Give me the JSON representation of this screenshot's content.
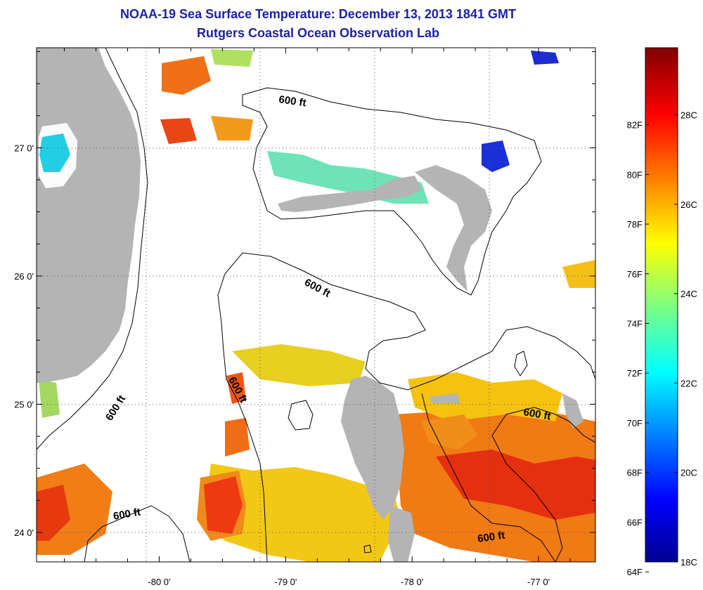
{
  "title": "NOAA-19 Sea Surface Temperature:  December 13, 2013 1841 GMT",
  "subtitle": "Rutgers Coastal Ocean Observation Lab",
  "map": {
    "lon_range": [
      -80.97,
      -76.55
    ],
    "lat_range": [
      23.77,
      27.78
    ],
    "lon_ticks": [
      {
        "value": -80,
        "label": "-80 0'"
      },
      {
        "value": -79,
        "label": "-79 0'"
      },
      {
        "value": -78,
        "label": "-78 0'"
      },
      {
        "value": -77,
        "label": "-77 0'"
      }
    ],
    "lat_ticks": [
      {
        "value": 27,
        "label": "27 0'"
      },
      {
        "value": 26,
        "label": "26 0'"
      },
      {
        "value": 25,
        "label": "25 0'"
      },
      {
        "value": 24,
        "label": "24 0'"
      }
    ],
    "contour_label": "600 ft",
    "colors": {
      "land": "#b4b4b4",
      "ocean_nodata": "#ffffff",
      "grid": "#555555"
    }
  },
  "colorbar": {
    "fahrenheit_labels": [
      "82F",
      "80F",
      "78F",
      "76F",
      "74F",
      "72F",
      "70F",
      "68F",
      "66F",
      "64F"
    ],
    "celsius_labels": [
      "28C",
      "26C",
      "24C",
      "22C",
      "20C",
      "18C"
    ],
    "range_c": [
      18,
      29.5
    ]
  }
}
